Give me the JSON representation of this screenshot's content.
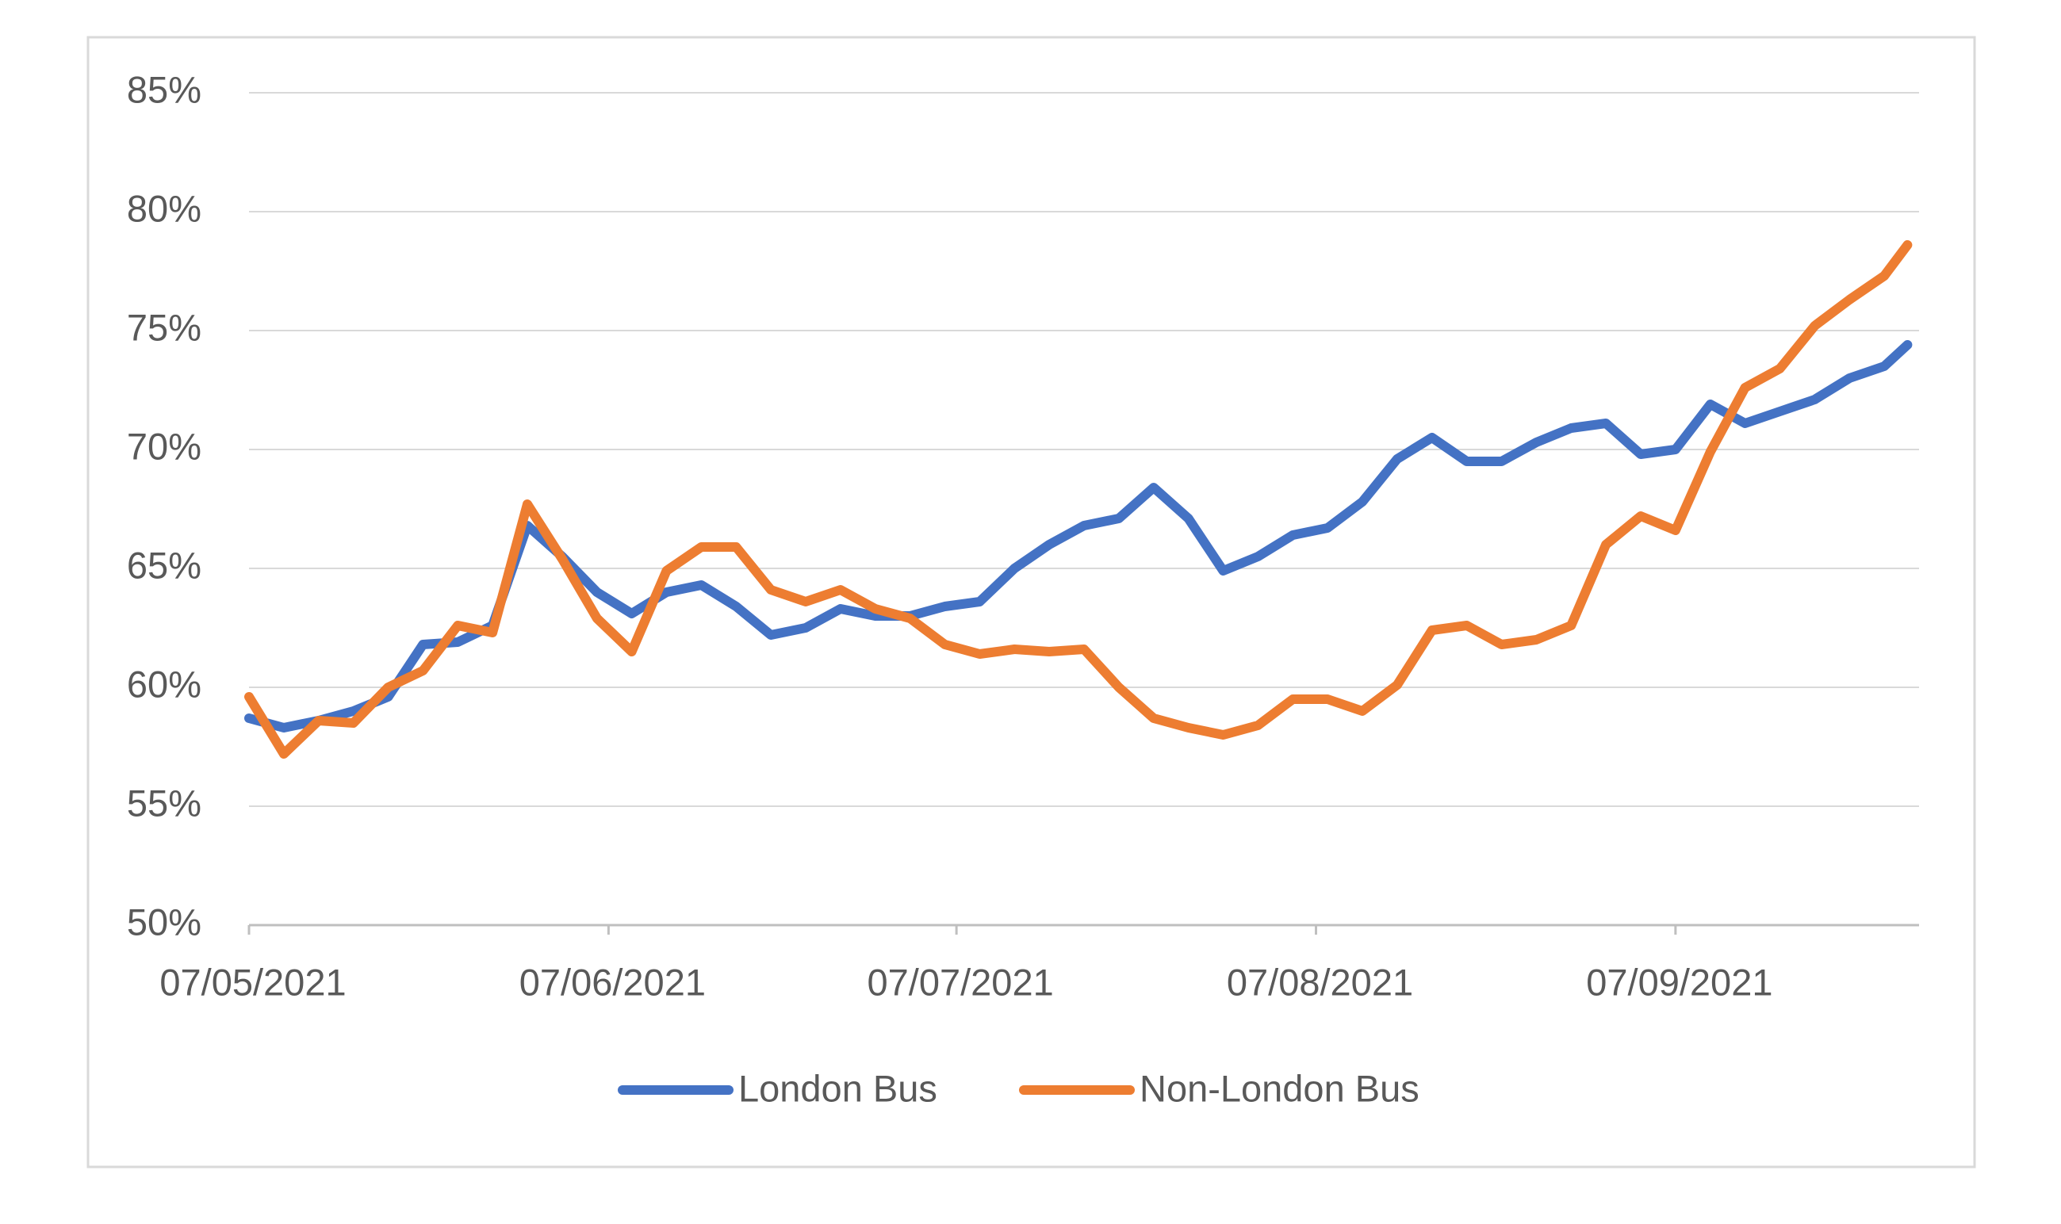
{
  "chart_data": {
    "type": "line",
    "x": [
      "2021-05-07",
      "2021-05-10",
      "2021-05-13",
      "2021-05-16",
      "2021-05-19",
      "2021-05-22",
      "2021-05-25",
      "2021-05-28",
      "2021-05-31",
      "2021-06-03",
      "2021-06-06",
      "2021-06-09",
      "2021-06-12",
      "2021-06-15",
      "2021-06-18",
      "2021-06-21",
      "2021-06-24",
      "2021-06-27",
      "2021-06-30",
      "2021-07-03",
      "2021-07-06",
      "2021-07-09",
      "2021-07-12",
      "2021-07-15",
      "2021-07-18",
      "2021-07-21",
      "2021-07-24",
      "2021-07-27",
      "2021-07-30",
      "2021-08-02",
      "2021-08-05",
      "2021-08-08",
      "2021-08-11",
      "2021-08-14",
      "2021-08-17",
      "2021-08-20",
      "2021-08-23",
      "2021-08-26",
      "2021-08-29",
      "2021-09-01",
      "2021-09-04",
      "2021-09-07",
      "2021-09-10",
      "2021-09-13",
      "2021-09-16",
      "2021-09-19",
      "2021-09-22",
      "2021-09-25",
      "2021-09-27"
    ],
    "series": [
      {
        "name": "London Bus",
        "color": "#4472c4",
        "values": [
          58.7,
          58.3,
          58.6,
          59.0,
          59.6,
          61.8,
          61.9,
          62.6,
          66.8,
          65.5,
          64.0,
          63.1,
          64.0,
          64.3,
          63.4,
          62.2,
          62.5,
          63.3,
          63.0,
          63.0,
          63.4,
          63.6,
          65.0,
          66.0,
          66.8,
          67.1,
          68.4,
          67.1,
          64.9,
          65.5,
          66.4,
          66.7,
          67.8,
          69.6,
          70.5,
          69.5,
          69.5,
          70.3,
          70.9,
          71.1,
          69.8,
          70.0,
          71.9,
          71.1,
          71.6,
          72.1,
          73.0,
          73.5,
          74.4
        ]
      },
      {
        "name": "Non-London Bus",
        "color": "#ed7d31",
        "values": [
          59.6,
          57.2,
          58.6,
          58.5,
          60.0,
          60.7,
          62.6,
          62.3,
          67.7,
          65.4,
          62.9,
          61.5,
          64.9,
          65.9,
          65.9,
          64.1,
          63.6,
          64.1,
          63.3,
          62.9,
          61.8,
          61.4,
          61.6,
          61.5,
          61.6,
          60.0,
          58.7,
          58.3,
          58.0,
          58.4,
          59.5,
          59.5,
          59.0,
          60.1,
          62.4,
          62.6,
          61.8,
          62.0,
          62.6,
          66.0,
          67.2,
          66.6,
          69.9,
          72.6,
          73.4,
          75.2,
          76.3,
          77.3,
          78.6
        ]
      }
    ],
    "xlim": [
      "2021-05-07",
      "2021-09-28"
    ],
    "xticks": [
      {
        "value": "2021-05-07",
        "label": "07/05/2021"
      },
      {
        "value": "2021-06-07",
        "label": "07/06/2021"
      },
      {
        "value": "2021-07-07",
        "label": "07/07/2021"
      },
      {
        "value": "2021-08-07",
        "label": "07/08/2021"
      },
      {
        "value": "2021-09-07",
        "label": "07/09/2021"
      }
    ],
    "ylim": [
      50,
      85
    ],
    "yticks": [
      {
        "value": 50,
        "label": "50%"
      },
      {
        "value": 55,
        "label": "55%"
      },
      {
        "value": 60,
        "label": "60%"
      },
      {
        "value": 65,
        "label": "65%"
      },
      {
        "value": 70,
        "label": "70%"
      },
      {
        "value": 75,
        "label": "75%"
      },
      {
        "value": 80,
        "label": "80%"
      },
      {
        "value": 85,
        "label": "85%"
      }
    ],
    "grid": true,
    "legend": "bottom"
  }
}
